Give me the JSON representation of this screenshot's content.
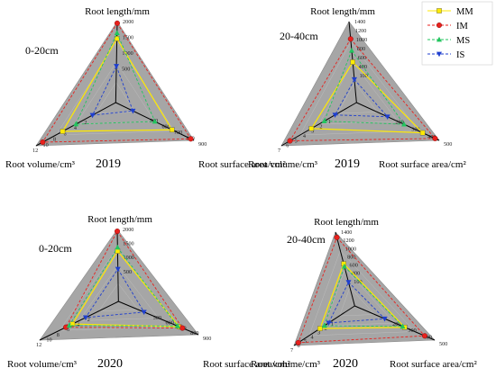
{
  "legend": {
    "placement": "top-right",
    "entries": [
      {
        "label": "MM",
        "color": "#ffea00",
        "marker": "square",
        "line": "solid"
      },
      {
        "label": "IM",
        "color": "#e8211d",
        "marker": "circle",
        "line": "dashed"
      },
      {
        "label": "MS",
        "color": "#22c55e",
        "marker": "triangle-up",
        "line": "dashed"
      },
      {
        "label": "IS",
        "color": "#1f3fcf",
        "marker": "triangle-down",
        "line": "dashed"
      }
    ]
  },
  "colors": {
    "background_fill": "#a6a6a6",
    "axis": "#000000",
    "mm": "#ffea00",
    "im": "#e8211d",
    "ms": "#22c55e",
    "is": "#1f3fcf"
  },
  "chart_data": [
    {
      "type": "radar",
      "depth_label": "0-20cm",
      "year_label": "2019",
      "axes": [
        {
          "name": "Root length/mm",
          "ticks": [
            "500",
            "1000",
            "1500",
            "2000"
          ],
          "min": 0,
          "max": 2000
        },
        {
          "name": "Root surface area/cm²",
          "ticks": [
            "500",
            "600",
            "700",
            "800",
            "900"
          ],
          "min": 400,
          "max": 900
        },
        {
          "name": "Root volume/cm³",
          "ticks": [
            "2",
            "4",
            "6",
            "8",
            "10",
            "12"
          ],
          "min": 0,
          "max": 12
        }
      ],
      "series": [
        {
          "name": "MM",
          "values": [
            1580,
            760,
            8.0
          ]
        },
        {
          "name": "IM",
          "values": [
            1960,
            880,
            11.0
          ]
        },
        {
          "name": "MS",
          "values": [
            1720,
            650,
            6.0
          ]
        },
        {
          "name": "IS",
          "values": [
            900,
            510,
            3.5
          ]
        }
      ]
    },
    {
      "type": "radar",
      "depth_label": "20-40cm",
      "year_label": "2019",
      "axes": [
        {
          "name": "Root length/mm",
          "ticks": [
            "100",
            "400",
            "600",
            "800",
            "1000",
            "1200",
            "1400"
          ],
          "min": 0,
          "max": 1400
        },
        {
          "name": "Root surface area/cm²",
          "ticks": [
            "200",
            "300",
            "400",
            "500"
          ],
          "min": 100,
          "max": 500
        },
        {
          "name": "Root volume/cm³",
          "ticks": [
            "1",
            "2",
            "3",
            "4",
            "5",
            "6",
            "7"
          ],
          "min": 0,
          "max": 7
        }
      ],
      "series": [
        {
          "name": "MM",
          "values": [
            700,
            420,
            4.2
          ]
        },
        {
          "name": "IM",
          "values": [
            1100,
            480,
            6.2
          ]
        },
        {
          "name": "MS",
          "values": [
            900,
            330,
            3.0
          ]
        },
        {
          "name": "IS",
          "values": [
            400,
            250,
            2.0
          ]
        }
      ]
    },
    {
      "type": "radar",
      "depth_label": "0-20cm",
      "year_label": "2020",
      "axes": [
        {
          "name": "Root length/mm",
          "ticks": [
            "500",
            "1000",
            "1500",
            "2000"
          ],
          "min": 0,
          "max": 2000
        },
        {
          "name": "Root surface area/cm²",
          "ticks": [
            "500",
            "600",
            "700",
            "800",
            "900"
          ],
          "min": 400,
          "max": 900
        },
        {
          "name": "Root volume/cm³",
          "ticks": [
            "2",
            "4",
            "6",
            "8",
            "10",
            "12"
          ],
          "min": 0,
          "max": 12
        }
      ],
      "series": [
        {
          "name": "MM",
          "values": [
            1400,
            780,
            7.0
          ]
        },
        {
          "name": "IM",
          "values": [
            1950,
            800,
            8.0
          ]
        },
        {
          "name": "MS",
          "values": [
            1500,
            770,
            7.5
          ]
        },
        {
          "name": "IS",
          "values": [
            900,
            560,
            5.0
          ]
        }
      ]
    },
    {
      "type": "radar",
      "depth_label": "20-40cm",
      "year_label": "2020",
      "axes": [
        {
          "name": "Root length/mm",
          "ticks": [
            "100",
            "400",
            "600",
            "800",
            "1000",
            "1200",
            "1400"
          ],
          "min": 0,
          "max": 1400
        },
        {
          "name": "Root surface area/cm²",
          "ticks": [
            "200",
            "300",
            "400",
            "500"
          ],
          "min": 100,
          "max": 500
        },
        {
          "name": "Root volume/cm³",
          "ticks": [
            "1",
            "2",
            "3",
            "4",
            "5",
            "6",
            "7"
          ],
          "min": 0,
          "max": 7
        }
      ],
      "series": [
        {
          "name": "MM",
          "values": [
            800,
            350,
            4.0
          ]
        },
        {
          "name": "IM",
          "values": [
            1300,
            450,
            6.5
          ]
        },
        {
          "name": "MS",
          "values": [
            750,
            340,
            3.5
          ]
        },
        {
          "name": "IS",
          "values": [
            450,
            250,
            3.0
          ]
        }
      ]
    }
  ]
}
